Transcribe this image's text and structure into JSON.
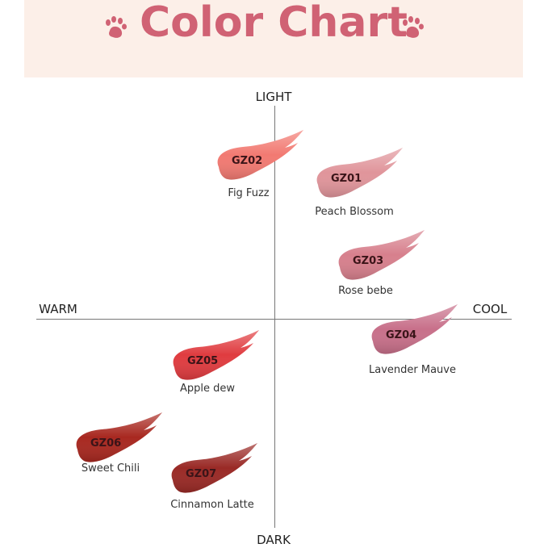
{
  "header": {
    "title": "Color Chart",
    "icon": "paw-icon",
    "title_color": "#d06274",
    "background": "#fcefe8"
  },
  "axes": {
    "top": "LIGHT",
    "bottom": "DARK",
    "left": "WARM",
    "right": "COOL"
  },
  "shades": [
    {
      "code": "GZ01",
      "name": "Peach Blossom",
      "color": "#e0959b"
    },
    {
      "code": "GZ02",
      "name": "Fig Fuzz",
      "color": "#f27a72"
    },
    {
      "code": "GZ03",
      "name": "Rose bebe",
      "color": "#d7808d"
    },
    {
      "code": "GZ04",
      "name": "Lavender Mauve",
      "color": "#c8708a"
    },
    {
      "code": "GZ05",
      "name": "Apple dew",
      "color": "#e03c40"
    },
    {
      "code": "GZ06",
      "name": "Sweet Chili",
      "color": "#a82820"
    },
    {
      "code": "GZ07",
      "name": "Cinnamon Latte",
      "color": "#9a2a26"
    }
  ]
}
